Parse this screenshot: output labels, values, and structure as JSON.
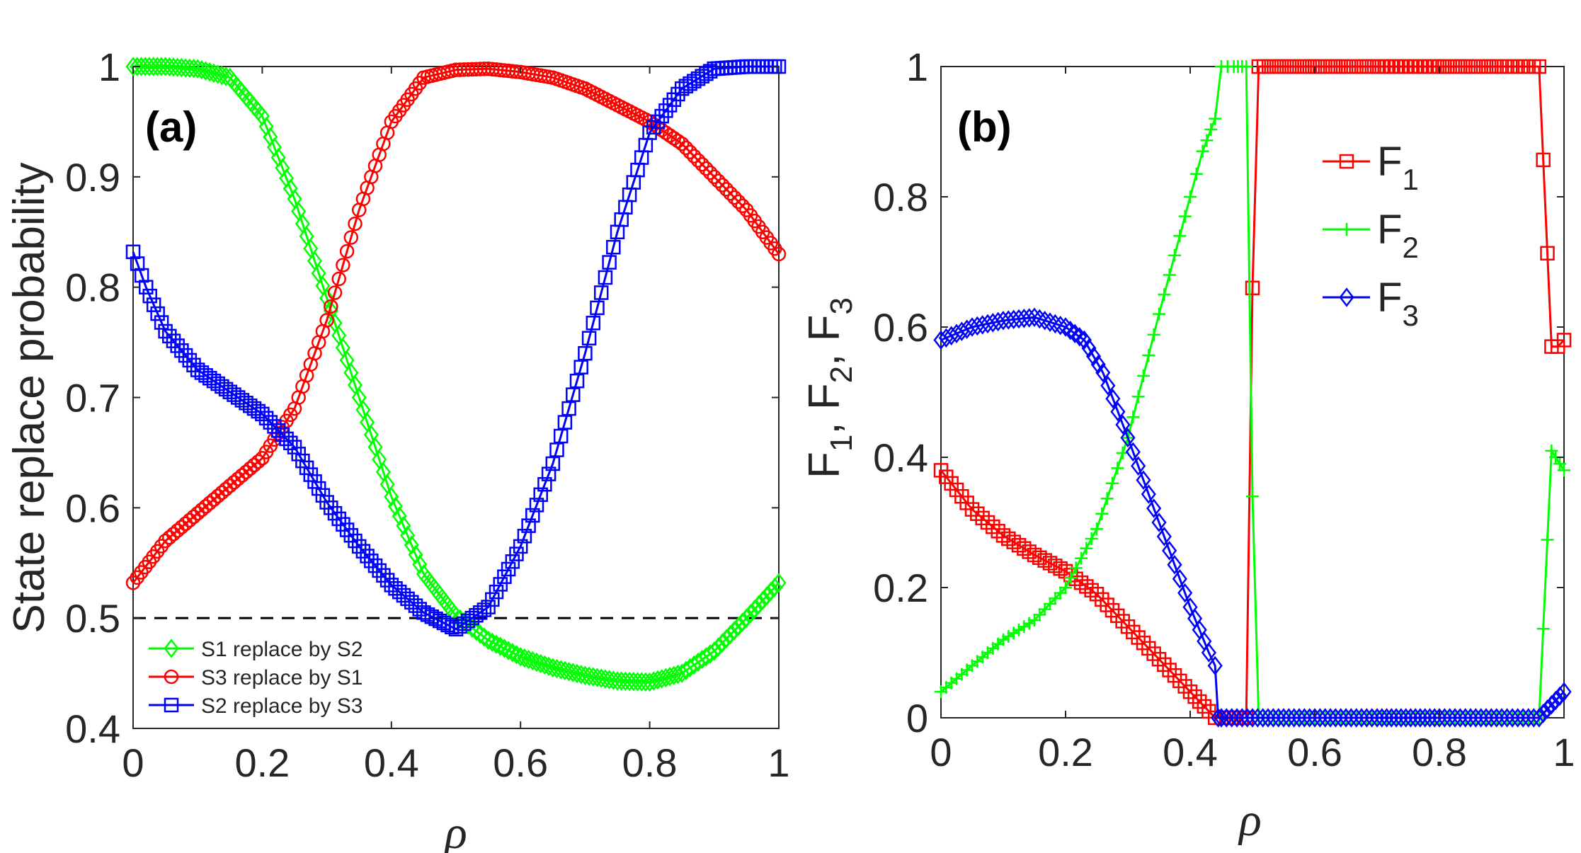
{
  "chart_data": [
    {
      "id": "a",
      "type": "line",
      "panel_label": "(a)",
      "xlabel": "ρ",
      "ylabel": "State replace probability",
      "xlim": [
        0,
        1
      ],
      "ylim": [
        0.4,
        1.0
      ],
      "xticks": [
        "0",
        "0.2",
        "0.4",
        "0.6",
        "0.8",
        "1"
      ],
      "yticks": [
        "0.4",
        "0.5",
        "0.6",
        "0.7",
        "0.8",
        "0.9",
        "1"
      ],
      "reference_line": {
        "y": 0.5,
        "style": "dashed",
        "color": "#000000"
      },
      "legend_position": "bottom-left",
      "series": [
        {
          "name": "S1 replace by S2",
          "color": "#00ff00",
          "marker": "diamond",
          "x": [
            0,
            0.05,
            0.1,
            0.15,
            0.2,
            0.25,
            0.3,
            0.35,
            0.4,
            0.45,
            0.5,
            0.55,
            0.6,
            0.65,
            0.7,
            0.75,
            0.8,
            0.85,
            0.9,
            0.95,
            1.0
          ],
          "y": [
            1.0,
            1.0,
            0.998,
            0.99,
            0.955,
            0.88,
            0.79,
            0.7,
            0.61,
            0.54,
            0.502,
            0.48,
            0.465,
            0.455,
            0.448,
            0.443,
            0.442,
            0.45,
            0.47,
            0.5,
            0.532
          ]
        },
        {
          "name": "S3 replace by S1",
          "color": "#ff0000",
          "marker": "circle",
          "x": [
            0,
            0.05,
            0.1,
            0.15,
            0.2,
            0.25,
            0.3,
            0.35,
            0.4,
            0.45,
            0.5,
            0.55,
            0.6,
            0.65,
            0.7,
            0.75,
            0.8,
            0.85,
            0.9,
            0.95,
            1.0
          ],
          "y": [
            0.532,
            0.57,
            0.595,
            0.62,
            0.645,
            0.69,
            0.77,
            0.87,
            0.95,
            0.99,
            0.997,
            0.998,
            0.995,
            0.99,
            0.98,
            0.965,
            0.95,
            0.93,
            0.9,
            0.87,
            0.83
          ]
        },
        {
          "name": "S2 replace by S3",
          "color": "#0000ff",
          "marker": "square",
          "x": [
            0,
            0.02,
            0.05,
            0.1,
            0.15,
            0.2,
            0.25,
            0.3,
            0.35,
            0.4,
            0.45,
            0.5,
            0.55,
            0.6,
            0.65,
            0.7,
            0.75,
            0.8,
            0.85,
            0.9,
            0.95,
            1.0
          ],
          "y": [
            0.832,
            0.8,
            0.76,
            0.725,
            0.705,
            0.685,
            0.655,
            0.605,
            0.565,
            0.53,
            0.505,
            0.49,
            0.51,
            0.565,
            0.64,
            0.74,
            0.85,
            0.94,
            0.98,
            0.998,
            1.0,
            1.0
          ]
        }
      ]
    },
    {
      "id": "b",
      "type": "line",
      "panel_label": "(b)",
      "xlabel": "ρ",
      "ylabel": "F1, F2, F3",
      "xlim": [
        0,
        1
      ],
      "ylim": [
        0,
        1
      ],
      "xticks": [
        "0",
        "0.2",
        "0.4",
        "0.6",
        "0.8",
        "1"
      ],
      "yticks": [
        "0",
        "0.2",
        "0.4",
        "0.6",
        "0.8",
        "1"
      ],
      "legend_position": "top-right",
      "series": [
        {
          "name": "F",
          "sub": "1",
          "color": "#ff0000",
          "marker": "square",
          "x": [
            0,
            0.05,
            0.1,
            0.15,
            0.2,
            0.25,
            0.3,
            0.35,
            0.4,
            0.43,
            0.44,
            0.45,
            0.49,
            0.5,
            0.51,
            0.6,
            0.7,
            0.8,
            0.9,
            0.96,
            0.98,
            0.99,
            1.0
          ],
          "y": [
            0.38,
            0.32,
            0.28,
            0.25,
            0.225,
            0.19,
            0.14,
            0.09,
            0.04,
            0.01,
            0.0,
            0.0,
            0.0,
            0.66,
            1.0,
            1.0,
            1.0,
            1.0,
            1.0,
            1.0,
            0.57,
            0.57,
            0.58
          ]
        },
        {
          "name": "F",
          "sub": "2",
          "color": "#00ff00",
          "marker": "plus",
          "x": [
            0,
            0.05,
            0.1,
            0.15,
            0.2,
            0.25,
            0.3,
            0.35,
            0.4,
            0.42,
            0.44,
            0.45,
            0.47,
            0.49,
            0.5,
            0.51,
            0.6,
            0.7,
            0.8,
            0.9,
            0.96,
            0.98,
            1.0
          ],
          "y": [
            0.04,
            0.08,
            0.12,
            0.15,
            0.2,
            0.29,
            0.43,
            0.62,
            0.8,
            0.87,
            0.92,
            1.0,
            1.0,
            1.0,
            0.34,
            0.0,
            0.0,
            0.0,
            0.0,
            0.0,
            0.0,
            0.41,
            0.38
          ]
        },
        {
          "name": "F",
          "sub": "3",
          "color": "#0000ff",
          "marker": "diamond",
          "x": [
            0,
            0.05,
            0.1,
            0.15,
            0.2,
            0.23,
            0.26,
            0.3,
            0.35,
            0.4,
            0.43,
            0.44,
            0.445,
            0.45,
            0.5,
            0.6,
            0.7,
            0.8,
            0.9,
            0.96,
            0.98,
            1.0
          ],
          "y": [
            0.58,
            0.6,
            0.61,
            0.615,
            0.6,
            0.58,
            0.53,
            0.43,
            0.3,
            0.17,
            0.1,
            0.08,
            0.0,
            0.0,
            0.0,
            0.0,
            0.0,
            0.0,
            0.0,
            0.0,
            0.02,
            0.04
          ]
        }
      ]
    }
  ]
}
